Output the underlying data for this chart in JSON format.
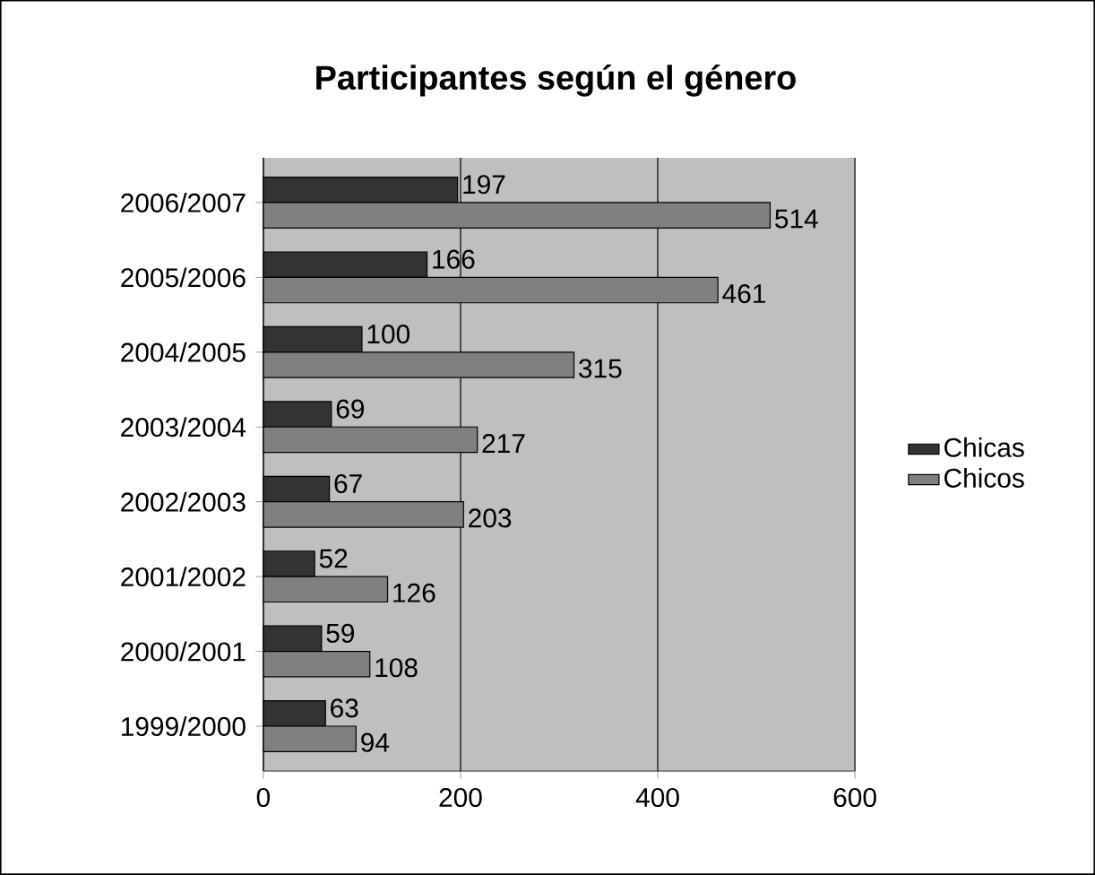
{
  "chart_data": {
    "type": "bar",
    "orientation": "horizontal",
    "title": "Participantes según el género",
    "categories": [
      "2006/2007",
      "2005/2006",
      "2004/2005",
      "2003/2004",
      "2002/2003",
      "2001/2002",
      "2000/2001",
      "1999/2000"
    ],
    "series": [
      {
        "name": "Chicas",
        "color": "#333333",
        "values": [
          197,
          166,
          100,
          69,
          67,
          52,
          59,
          63
        ]
      },
      {
        "name": "Chicos",
        "color": "#808080",
        "values": [
          514,
          461,
          315,
          217,
          203,
          126,
          108,
          94
        ]
      }
    ],
    "xlim": [
      0,
      600
    ],
    "xticks": [
      0,
      200,
      400,
      600
    ],
    "grid": "x",
    "legend": "right",
    "data_labels": true
  }
}
